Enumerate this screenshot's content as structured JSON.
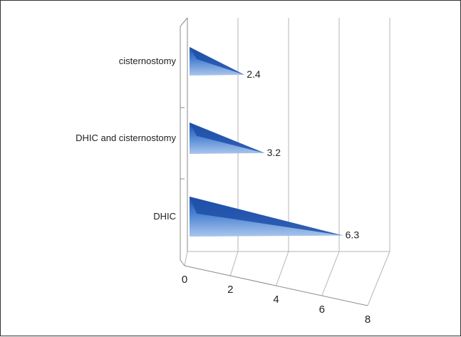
{
  "chart_data": {
    "type": "bar",
    "orientation": "horizontal",
    "style": "3d-cone",
    "categories": [
      "cisternostomy",
      "DHIC and cisternostomy",
      "DHIC"
    ],
    "values": [
      2.4,
      3.2,
      6.3
    ],
    "data_labels": [
      "2.4",
      "3.2",
      "6.3"
    ],
    "xlim": [
      0,
      8
    ],
    "x_ticks": [
      "0",
      "2",
      "4",
      "6",
      "8"
    ],
    "grid": true,
    "legend": "none",
    "colors": {
      "bar_light": "#a9c6ec",
      "bar_mid": "#4d84d3",
      "bar_dark": "#1f4fa8",
      "grid": "#b5b5b5"
    }
  }
}
